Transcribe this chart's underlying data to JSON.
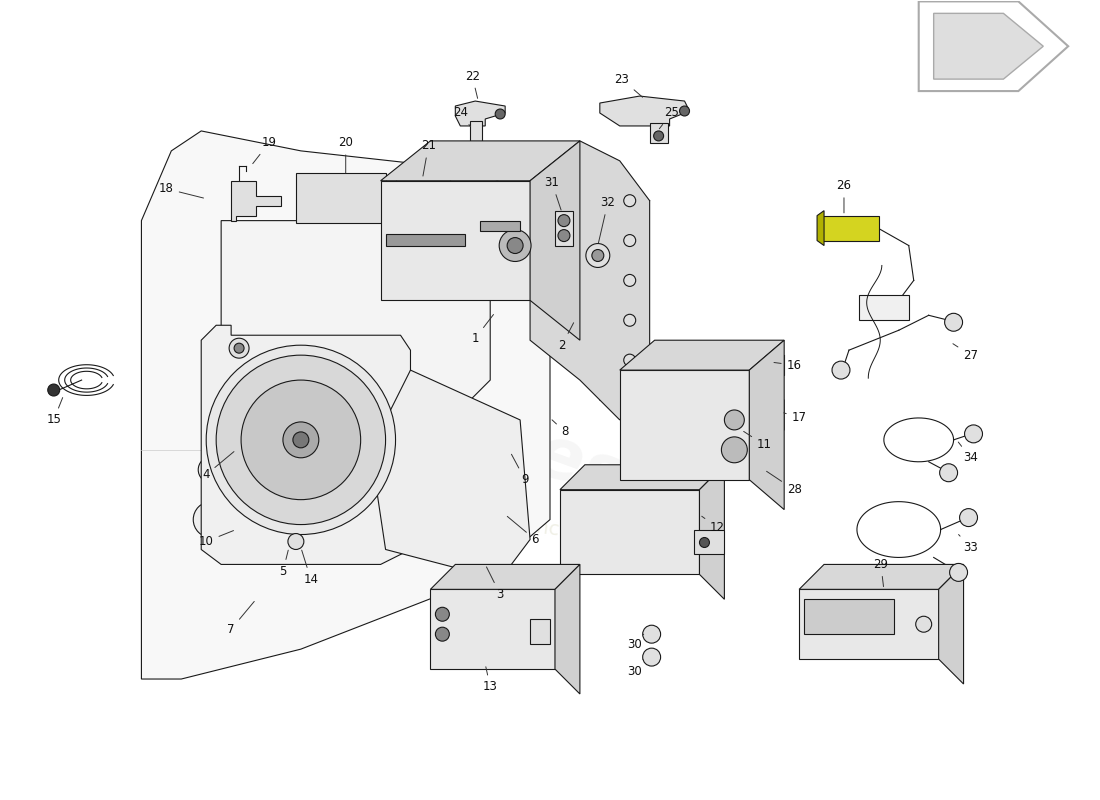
{
  "background_color": "#ffffff",
  "line_color": "#1a1a1a",
  "light_fill": "#f0f0f0",
  "mid_fill": "#e0e0e0",
  "dark_fill": "#c8c8c8",
  "watermark1": "elferares",
  "watermark2": "a passion for parts since 2005",
  "arrow_color": "#cccccc",
  "yellow_fill": "#e8e860"
}
